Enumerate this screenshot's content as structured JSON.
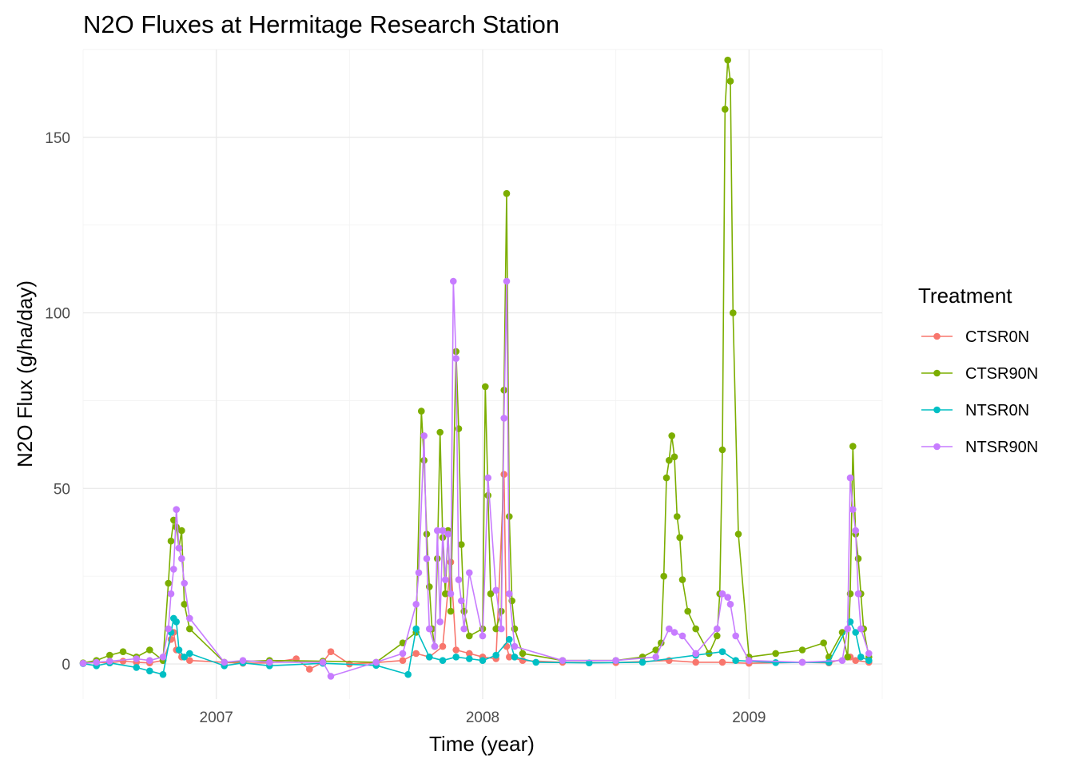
{
  "chart_data": {
    "type": "line",
    "title": "N2O Fluxes at Hermitage Research Station",
    "xlabel": "Time (year)",
    "ylabel": "N2O Flux (g/ha/day)",
    "xlim": [
      2006.5,
      2009.5
    ],
    "ylim": [
      -10,
      175
    ],
    "x_ticks": [
      2007,
      2008,
      2009
    ],
    "x_tick_labels": [
      "2007",
      "2008",
      "2009"
    ],
    "y_ticks": [
      0,
      50,
      100,
      150
    ],
    "y_tick_labels": [
      "0",
      "50",
      "100",
      "150"
    ],
    "grid": true,
    "legend": {
      "title": "Treatment",
      "position": "right",
      "entries": [
        "CTSR0N",
        "CTSR90N",
        "NTSR0N",
        "NTSR90N"
      ]
    },
    "series": [
      {
        "name": "CTSR0N",
        "color": "#F8766D",
        "x": [
          2006.5,
          2006.55,
          2006.6,
          2006.65,
          2006.7,
          2006.75,
          2006.8,
          2006.83,
          2006.84,
          2006.85,
          2006.87,
          2006.9,
          2007.03,
          2007.1,
          2007.2,
          2007.3,
          2007.35,
          2007.4,
          2007.43,
          2007.5,
          2007.6,
          2007.7,
          2007.75,
          2007.8,
          2007.85,
          2007.88,
          2007.9,
          2007.95,
          2008.0,
          2008.05,
          2008.08,
          2008.09,
          2008.1,
          2008.15,
          2008.3,
          2008.5,
          2008.7,
          2008.8,
          2008.9,
          2009.0,
          2009.2,
          2009.3,
          2009.38,
          2009.4,
          2009.45
        ],
        "y": [
          0.2,
          0.5,
          0.3,
          0.8,
          0.5,
          0.3,
          1.0,
          7.0,
          9.0,
          4.0,
          2.0,
          1.0,
          0.5,
          0.2,
          0.3,
          1.5,
          -1.5,
          0.5,
          3.5,
          0.0,
          0.4,
          1.0,
          3.0,
          2.0,
          5.0,
          29.0,
          4.0,
          3.0,
          2.0,
          1.5,
          54.0,
          5.0,
          2.0,
          1.0,
          0.5,
          0.4,
          1.0,
          0.5,
          0.5,
          0.2,
          0.5,
          0.3,
          2.0,
          1.0,
          0.5
        ]
      },
      {
        "name": "CTSR90N",
        "color": "#7CAE00",
        "x": [
          2006.5,
          2006.55,
          2006.6,
          2006.65,
          2006.7,
          2006.75,
          2006.8,
          2006.82,
          2006.83,
          2006.84,
          2006.85,
          2006.86,
          2006.87,
          2006.88,
          2006.9,
          2007.03,
          2007.2,
          2007.4,
          2007.6,
          2007.7,
          2007.75,
          2007.77,
          2007.78,
          2007.79,
          2007.8,
          2007.81,
          2007.82,
          2007.83,
          2007.84,
          2007.85,
          2007.86,
          2007.87,
          2007.88,
          2007.9,
          2007.91,
          2007.92,
          2007.93,
          2007.95,
          2008.0,
          2008.01,
          2008.02,
          2008.03,
          2008.05,
          2008.07,
          2008.08,
          2008.09,
          2008.1,
          2008.11,
          2008.12,
          2008.15,
          2008.3,
          2008.5,
          2008.6,
          2008.65,
          2008.67,
          2008.68,
          2008.69,
          2008.7,
          2008.71,
          2008.72,
          2008.73,
          2008.74,
          2008.75,
          2008.77,
          2008.8,
          2008.85,
          2008.88,
          2008.89,
          2008.9,
          2008.91,
          2008.92,
          2008.93,
          2008.94,
          2008.96,
          2009.0,
          2009.1,
          2009.2,
          2009.28,
          2009.3,
          2009.35,
          2009.37,
          2009.38,
          2009.39,
          2009.4,
          2009.41,
          2009.42,
          2009.43,
          2009.45
        ],
        "y": [
          0.3,
          1.0,
          2.5,
          3.5,
          2.0,
          4.0,
          1.0,
          23.0,
          35.0,
          41.0,
          39.0,
          33.0,
          38.0,
          17.0,
          10.0,
          0.5,
          1.0,
          0.8,
          0.5,
          6.0,
          9.0,
          72.0,
          58.0,
          37.0,
          22.0,
          10.0,
          5.0,
          30.0,
          66.0,
          36.0,
          20.0,
          38.0,
          15.0,
          89.0,
          67.0,
          34.0,
          15.0,
          8.0,
          10.0,
          79.0,
          48.0,
          20.0,
          10.0,
          15.0,
          78.0,
          134.0,
          42.0,
          18.0,
          10.0,
          3.0,
          1.0,
          1.0,
          2.0,
          4.0,
          6.0,
          25.0,
          53.0,
          58.0,
          65.0,
          59.0,
          42.0,
          36.0,
          24.0,
          15.0,
          10.0,
          3.0,
          8.0,
          20.0,
          61.0,
          158.0,
          172.0,
          166.0,
          100.0,
          37.0,
          2.0,
          3.0,
          4.0,
          6.0,
          2.0,
          9.0,
          2.0,
          20.0,
          62.0,
          37.0,
          30.0,
          20.0,
          10.0,
          2.0
        ]
      },
      {
        "name": "NTSR0N",
        "color": "#00BFC4",
        "x": [
          2006.5,
          2006.55,
          2006.6,
          2006.7,
          2006.75,
          2006.8,
          2006.83,
          2006.84,
          2006.85,
          2006.86,
          2006.88,
          2006.9,
          2007.03,
          2007.1,
          2007.2,
          2007.4,
          2007.6,
          2007.72,
          2007.75,
          2007.8,
          2007.85,
          2007.9,
          2007.95,
          2008.0,
          2008.05,
          2008.1,
          2008.12,
          2008.2,
          2008.4,
          2008.6,
          2008.8,
          2008.9,
          2008.95,
          2009.1,
          2009.3,
          2009.38,
          2009.4,
          2009.42,
          2009.45
        ],
        "y": [
          0.1,
          -0.5,
          0.3,
          -1.0,
          -2.0,
          -3.0,
          9.0,
          13.0,
          12.0,
          4.0,
          2.0,
          3.0,
          -0.5,
          0.3,
          -0.5,
          0.2,
          -0.4,
          -3.0,
          10.0,
          2.0,
          1.0,
          2.0,
          1.5,
          1.0,
          2.5,
          7.0,
          2.0,
          0.5,
          0.3,
          0.5,
          2.5,
          3.5,
          1.0,
          0.4,
          0.5,
          12.0,
          9.0,
          2.0,
          1.0
        ]
      },
      {
        "name": "NTSR90N",
        "color": "#C77CFF",
        "x": [
          2006.5,
          2006.55,
          2006.6,
          2006.7,
          2006.75,
          2006.8,
          2006.82,
          2006.83,
          2006.84,
          2006.85,
          2006.86,
          2006.87,
          2006.88,
          2006.9,
          2007.03,
          2007.1,
          2007.2,
          2007.4,
          2007.43,
          2007.6,
          2007.7,
          2007.75,
          2007.76,
          2007.78,
          2007.79,
          2007.8,
          2007.82,
          2007.83,
          2007.84,
          2007.85,
          2007.86,
          2007.87,
          2007.88,
          2007.89,
          2007.9,
          2007.91,
          2007.92,
          2007.93,
          2007.95,
          2008.0,
          2008.02,
          2008.05,
          2008.07,
          2008.08,
          2008.09,
          2008.1,
          2008.12,
          2008.3,
          2008.5,
          2008.65,
          2008.7,
          2008.72,
          2008.75,
          2008.8,
          2008.88,
          2008.9,
          2008.92,
          2008.93,
          2008.95,
          2009.0,
          2009.2,
          2009.35,
          2009.37,
          2009.38,
          2009.39,
          2009.4,
          2009.41,
          2009.42,
          2009.45
        ],
        "y": [
          0.2,
          0.5,
          0.8,
          1.5,
          1.0,
          2.0,
          10.0,
          20.0,
          27.0,
          44.0,
          33.0,
          30.0,
          23.0,
          13.0,
          0.5,
          1.0,
          0.5,
          0.5,
          -3.5,
          0.5,
          3.0,
          17.0,
          26.0,
          65.0,
          30.0,
          10.0,
          5.0,
          38.0,
          12.0,
          38.0,
          24.0,
          37.0,
          20.0,
          109.0,
          87.0,
          24.0,
          18.0,
          10.0,
          26.0,
          8.0,
          53.0,
          21.0,
          10.0,
          70.0,
          109.0,
          20.0,
          5.0,
          1.0,
          1.0,
          2.0,
          10.0,
          9.0,
          8.0,
          3.0,
          10.0,
          20.0,
          19.0,
          17.0,
          8.0,
          1.0,
          0.5,
          1.0,
          10.0,
          53.0,
          44.0,
          38.0,
          20.0,
          10.0,
          3.0
        ]
      }
    ]
  }
}
